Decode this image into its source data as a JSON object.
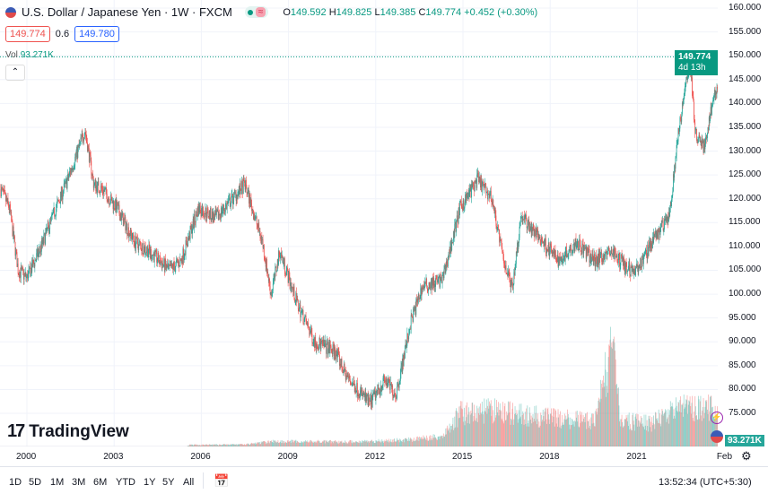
{
  "header": {
    "title": "U.S. Dollar / Japanese Yen · 1W · FXCM",
    "o_label": "O",
    "o": "149.592",
    "h_label": "H",
    "h": "149.825",
    "l_label": "L",
    "l": "149.385",
    "c_label": "C",
    "c": "149.774",
    "change": "+0.452 (+0.30%)",
    "sell": "149.774",
    "spread": "0.6",
    "buy": "149.780",
    "vol_label": "Vol",
    "vol": "93.271K"
  },
  "last_price": {
    "price": "149.774",
    "countdown": "4d 13h"
  },
  "volume_label": "93.271K",
  "watermark": "TradingView",
  "timeframes": [
    "1D",
    "5D",
    "1M",
    "3M",
    "6M",
    "YTD",
    "1Y",
    "5Y",
    "All"
  ],
  "clock": "13:52:34 (UTC+5:30)",
  "colors": {
    "up": "#26a69a",
    "down": "#ef5350"
  },
  "chart_data": {
    "type": "candlestick",
    "title": "U.S. Dollar / Japanese Yen · 1W · FXCM",
    "y_ticks": [
      "160.000",
      "155.000",
      "150.000",
      "145.000",
      "140.000",
      "135.000",
      "130.000",
      "125.000",
      "120.000",
      "115.000",
      "110.000",
      "105.000",
      "100.000",
      "95.000",
      "90.000",
      "85.000",
      "80.000",
      "75.000"
    ],
    "ylim": [
      70,
      160.5
    ],
    "x_ticks": [
      "2000",
      "2003",
      "2006",
      "2009",
      "2012",
      "2015",
      "2018",
      "2021",
      "Feb"
    ],
    "x_tick_years": [
      2000,
      2003,
      2006,
      2009,
      2012,
      2015,
      2018,
      2021,
      2024.1
    ],
    "xlim": [
      1999.1,
      2025.75
    ],
    "price_keypoints": [
      [
        1999.1,
        122
      ],
      [
        1999.4,
        118
      ],
      [
        1999.7,
        105
      ],
      [
        2000,
        103.4
      ],
      [
        2000.5,
        110
      ],
      [
        2000.9,
        116.5
      ],
      [
        2001.4,
        124
      ],
      [
        2002.0,
        134.4
      ],
      [
        2002.3,
        123
      ],
      [
        2002.6,
        122
      ],
      [
        2003.1,
        118
      ],
      [
        2003.7,
        111
      ],
      [
        2004.2,
        109
      ],
      [
        2004.9,
        105
      ],
      [
        2005.3,
        107
      ],
      [
        2005.9,
        118
      ],
      [
        2006.5,
        116
      ],
      [
        2007.5,
        123
      ],
      [
        2008.1,
        111
      ],
      [
        2008.4,
        100
      ],
      [
        2008.7,
        109
      ],
      [
        2009.3,
        98
      ],
      [
        2009.9,
        90
      ],
      [
        2010.6,
        88
      ],
      [
        2011.0,
        82.7
      ],
      [
        2011.8,
        77
      ],
      [
        2012.3,
        82
      ],
      [
        2012.7,
        79
      ],
      [
        2013.2,
        94
      ],
      [
        2013.6,
        101.5
      ],
      [
        2014.3,
        103
      ],
      [
        2014.9,
        118
      ],
      [
        2015.5,
        124
      ],
      [
        2016.0,
        120
      ],
      [
        2016.4,
        107
      ],
      [
        2016.7,
        101.5
      ],
      [
        2017.0,
        116.5
      ],
      [
        2017.6,
        112
      ],
      [
        2018.3,
        107
      ],
      [
        2018.9,
        111
      ],
      [
        2019.5,
        107
      ],
      [
        2020.1,
        109
      ],
      [
        2020.7,
        105
      ],
      [
        2021.0,
        105
      ],
      [
        2021.5,
        111
      ],
      [
        2022.1,
        116.5
      ],
      [
        2022.4,
        133.5
      ],
      [
        2022.8,
        149.5
      ],
      [
        2023.0,
        133.5
      ],
      [
        2023.3,
        130.6
      ],
      [
        2023.6,
        141
      ],
      [
        2024.1,
        149.774
      ]
    ],
    "volume_keypoints_K": [
      [
        1999.1,
        0
      ],
      [
        2005.5,
        0
      ],
      [
        2005.6,
        6
      ],
      [
        2007.5,
        8
      ],
      [
        2008.5,
        20
      ],
      [
        2011,
        18
      ],
      [
        2013,
        25
      ],
      [
        2014.3,
        40
      ],
      [
        2014.9,
        130
      ],
      [
        2016,
        140
      ],
      [
        2018,
        110
      ],
      [
        2019.5,
        100
      ],
      [
        2020.2,
        410
      ],
      [
        2020.4,
        100
      ],
      [
        2021.5,
        90
      ],
      [
        2022.3,
        160
      ],
      [
        2023.5,
        150
      ],
      [
        2024.1,
        93.271
      ]
    ]
  }
}
